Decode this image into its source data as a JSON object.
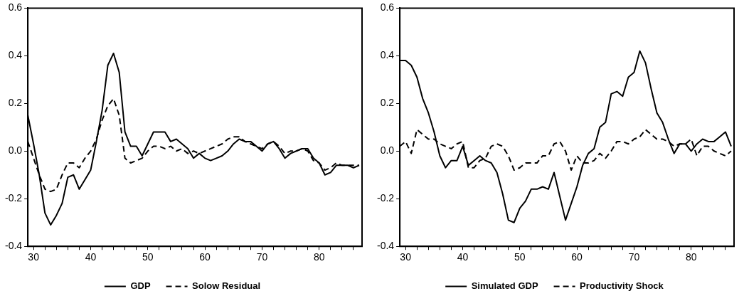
{
  "chart_data": [
    {
      "type": "line",
      "x": [
        29,
        30,
        31,
        32,
        33,
        34,
        35,
        36,
        37,
        38,
        39,
        40,
        41,
        42,
        43,
        44,
        45,
        46,
        47,
        48,
        49,
        50,
        51,
        52,
        53,
        54,
        55,
        56,
        57,
        58,
        59,
        60,
        61,
        62,
        63,
        64,
        65,
        66,
        67,
        68,
        69,
        70,
        71,
        72,
        73,
        74,
        75,
        76,
        77,
        78,
        79,
        80,
        81,
        82,
        83,
        84,
        85,
        86,
        87
      ],
      "xlim": [
        29,
        87.5
      ],
      "xticks": [
        30,
        {
          "value": 32,
          "label": null
        },
        {
          "value": 34,
          "label": null
        },
        {
          "value": 36,
          "label": null
        },
        {
          "value": 38,
          "label": null
        },
        40,
        {
          "value": 42,
          "label": null
        },
        {
          "value": 44,
          "label": null
        },
        {
          "value": 46,
          "label": null
        },
        {
          "value": 48,
          "label": null
        },
        50,
        {
          "value": 52,
          "label": null
        },
        {
          "value": 54,
          "label": null
        },
        {
          "value": 56,
          "label": null
        },
        {
          "value": 58,
          "label": null
        },
        60,
        {
          "value": 62,
          "label": null
        },
        {
          "value": 64,
          "label": null
        },
        {
          "value": 66,
          "label": null
        },
        {
          "value": 68,
          "label": null
        },
        70,
        {
          "value": 72,
          "label": null
        },
        {
          "value": 74,
          "label": null
        },
        {
          "value": 76,
          "label": null
        },
        {
          "value": 78,
          "label": null
        },
        80,
        {
          "value": 82,
          "label": null
        },
        {
          "value": 84,
          "label": null
        },
        {
          "value": 86,
          "label": null
        }
      ],
      "ylim": [
        -0.4,
        0.6
      ],
      "yticks": [
        {
          "value": -0.4,
          "label": "-0.4"
        },
        {
          "value": -0.2,
          "label": "-0.2"
        },
        {
          "value": 0,
          "label": "0.0"
        },
        {
          "value": 0.2,
          "label": "0.2"
        },
        {
          "value": 0.4,
          "label": "0.4"
        },
        {
          "value": 0.6,
          "label": "0.6"
        }
      ],
      "grid": false,
      "legend": "bottom",
      "marker": "none",
      "series": [
        {
          "name": "GDP",
          "color": "#000000",
          "line_style": "solid",
          "values": [
            0.15,
            0.03,
            -0.1,
            -0.26,
            -0.31,
            -0.27,
            -0.22,
            -0.11,
            -0.1,
            -0.16,
            -0.12,
            -0.08,
            0.04,
            0.17,
            0.36,
            0.41,
            0.33,
            0.08,
            0.02,
            0.02,
            -0.02,
            0.03,
            0.08,
            0.08,
            0.08,
            0.04,
            0.05,
            0.03,
            0.01,
            -0.03,
            -0.01,
            -0.03,
            -0.04,
            -0.03,
            -0.02,
            0,
            0.03,
            0.05,
            0.04,
            0.04,
            0.02,
            0,
            0.03,
            0.04,
            0.01,
            -0.03,
            -0.01,
            0,
            0.01,
            0.01,
            -0.03,
            -0.05,
            -0.1,
            -0.09,
            -0.06,
            -0.06,
            -0.06,
            -0.07,
            -0.06
          ]
        },
        {
          "name": "Solow Residual",
          "color": "#000000",
          "line_style": "dashed",
          "values": [
            0.04,
            -0.03,
            -0.1,
            -0.16,
            -0.17,
            -0.16,
            -0.1,
            -0.05,
            -0.05,
            -0.07,
            -0.03,
            0,
            0.05,
            0.13,
            0.19,
            0.22,
            0.15,
            -0.03,
            -0.05,
            -0.04,
            -0.03,
            0,
            0.02,
            0.02,
            0.01,
            0.02,
            0,
            0.01,
            -0.01,
            0,
            -0.01,
            0,
            0.01,
            0.02,
            0.03,
            0.05,
            0.06,
            0.06,
            0.04,
            0.03,
            0.02,
            0.01,
            0.03,
            0.04,
            0.02,
            -0.01,
            0,
            0,
            0.01,
            0,
            -0.04,
            -0.05,
            -0.08,
            -0.07,
            -0.05,
            -0.06,
            -0.06,
            -0.06,
            -0.06
          ]
        }
      ]
    },
    {
      "type": "line",
      "x": [
        29,
        30,
        31,
        32,
        33,
        34,
        35,
        36,
        37,
        38,
        39,
        40,
        41,
        42,
        43,
        44,
        45,
        46,
        47,
        48,
        49,
        50,
        51,
        52,
        53,
        54,
        55,
        56,
        57,
        58,
        59,
        60,
        61,
        62,
        63,
        64,
        65,
        66,
        67,
        68,
        69,
        70,
        71,
        72,
        73,
        74,
        75,
        76,
        77,
        78,
        79,
        80,
        81,
        82,
        83,
        84,
        85,
        86,
        87
      ],
      "xlim": [
        29,
        87.5
      ],
      "xticks": [
        30,
        {
          "value": 32,
          "label": null
        },
        {
          "value": 34,
          "label": null
        },
        {
          "value": 36,
          "label": null
        },
        {
          "value": 38,
          "label": null
        },
        40,
        {
          "value": 42,
          "label": null
        },
        {
          "value": 44,
          "label": null
        },
        {
          "value": 46,
          "label": null
        },
        {
          "value": 48,
          "label": null
        },
        50,
        {
          "value": 52,
          "label": null
        },
        {
          "value": 54,
          "label": null
        },
        {
          "value": 56,
          "label": null
        },
        {
          "value": 58,
          "label": null
        },
        60,
        {
          "value": 62,
          "label": null
        },
        {
          "value": 64,
          "label": null
        },
        {
          "value": 66,
          "label": null
        },
        {
          "value": 68,
          "label": null
        },
        70,
        {
          "value": 72,
          "label": null
        },
        {
          "value": 74,
          "label": null
        },
        {
          "value": 76,
          "label": null
        },
        {
          "value": 78,
          "label": null
        },
        80,
        {
          "value": 82,
          "label": null
        },
        {
          "value": 84,
          "label": null
        },
        {
          "value": 86,
          "label": null
        }
      ],
      "ylim": [
        -0.4,
        0.6
      ],
      "yticks": [
        {
          "value": -0.4,
          "label": "-0.4"
        },
        {
          "value": -0.2,
          "label": "-0.2"
        },
        {
          "value": 0,
          "label": "0.0"
        },
        {
          "value": 0.2,
          "label": "0.2"
        },
        {
          "value": 0.4,
          "label": "0.4"
        },
        {
          "value": 0.6,
          "label": "0.6"
        }
      ],
      "grid": false,
      "legend": "bottom",
      "marker": "none",
      "series": [
        {
          "name": "Simulated GDP",
          "color": "#000000",
          "line_style": "solid",
          "values": [
            0.38,
            0.38,
            0.36,
            0.31,
            0.22,
            0.16,
            0.08,
            -0.02,
            -0.07,
            -0.04,
            -0.04,
            0.02,
            -0.06,
            -0.04,
            -0.02,
            -0.04,
            -0.05,
            -0.09,
            -0.18,
            -0.29,
            -0.3,
            -0.24,
            -0.21,
            -0.16,
            -0.16,
            -0.15,
            -0.16,
            -0.09,
            -0.19,
            -0.29,
            -0.22,
            -0.15,
            -0.06,
            -0.01,
            0.01,
            0.1,
            0.12,
            0.24,
            0.25,
            0.23,
            0.31,
            0.33,
            0.42,
            0.37,
            0.26,
            0.16,
            0.12,
            0.05,
            -0.01,
            0.03,
            0.03,
            0,
            0.03,
            0.05,
            0.04,
            0.04,
            0.06,
            0.08,
            0.02
          ]
        },
        {
          "name": "Productivity Shock",
          "color": "#000000",
          "line_style": "dashed",
          "values": [
            0.02,
            0.04,
            -0.01,
            0.09,
            0.07,
            0.05,
            0.05,
            0.03,
            0.02,
            0.01,
            0.03,
            0.04,
            -0.07,
            -0.07,
            -0.04,
            -0.03,
            0.02,
            0.03,
            0.02,
            -0.02,
            -0.08,
            -0.07,
            -0.05,
            -0.05,
            -0.05,
            -0.02,
            -0.02,
            0.03,
            0.04,
            0,
            -0.08,
            -0.02,
            -0.05,
            -0.05,
            -0.04,
            -0.01,
            -0.03,
            0,
            0.04,
            0.04,
            0.03,
            0.05,
            0.06,
            0.09,
            0.07,
            0.05,
            0.05,
            0.04,
            0.02,
            0.03,
            0.03,
            0.05,
            -0.02,
            0.02,
            0.02,
            0,
            -0.01,
            -0.02,
            0
          ]
        }
      ]
    }
  ]
}
